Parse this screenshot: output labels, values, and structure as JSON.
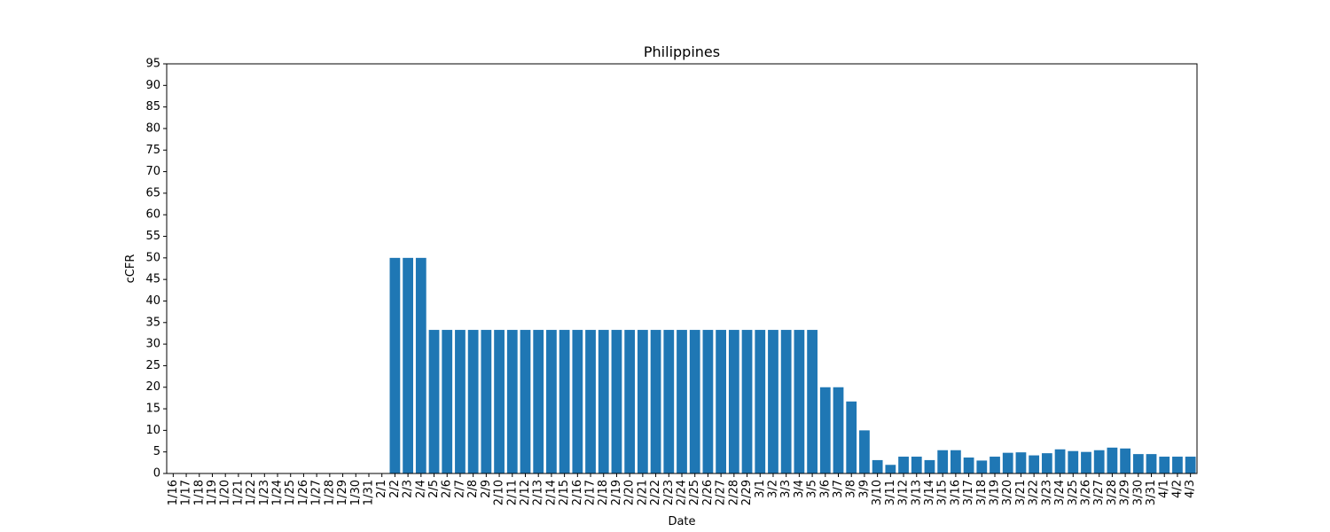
{
  "chart_data": {
    "type": "bar",
    "title": "Philippines",
    "xlabel": "Date",
    "ylabel": "cCFR",
    "ylim": [
      0,
      95
    ],
    "ytick_step": 5,
    "grid": false,
    "bar_color": "#1f77b4",
    "categories": [
      "1/16",
      "1/17",
      "1/18",
      "1/19",
      "1/20",
      "1/21",
      "1/22",
      "1/23",
      "1/24",
      "1/25",
      "1/26",
      "1/27",
      "1/28",
      "1/29",
      "1/30",
      "1/31",
      "2/1",
      "2/2",
      "2/3",
      "2/4",
      "2/5",
      "2/6",
      "2/7",
      "2/8",
      "2/9",
      "2/10",
      "2/11",
      "2/12",
      "2/13",
      "2/14",
      "2/15",
      "2/16",
      "2/17",
      "2/18",
      "2/19",
      "2/20",
      "2/21",
      "2/22",
      "2/23",
      "2/24",
      "2/25",
      "2/26",
      "2/27",
      "2/28",
      "2/29",
      "3/1",
      "3/2",
      "3/3",
      "3/4",
      "3/5",
      "3/6",
      "3/7",
      "3/8",
      "3/9",
      "3/10",
      "3/11",
      "3/12",
      "3/13",
      "3/14",
      "3/15",
      "3/16",
      "3/17",
      "3/18",
      "3/19",
      "3/20",
      "3/21",
      "3/22",
      "3/23",
      "3/24",
      "3/25",
      "3/26",
      "3/27",
      "3/28",
      "3/29",
      "3/30",
      "3/31",
      "4/1",
      "4/2",
      "4/3"
    ],
    "values": [
      0,
      0,
      0,
      0,
      0,
      0,
      0,
      0,
      0,
      0,
      0,
      0,
      0,
      0,
      0,
      0,
      0,
      50,
      50,
      50,
      33.3,
      33.3,
      33.3,
      33.3,
      33.3,
      33.3,
      33.3,
      33.3,
      33.3,
      33.3,
      33.3,
      33.3,
      33.3,
      33.3,
      33.3,
      33.3,
      33.3,
      33.3,
      33.3,
      33.3,
      33.3,
      33.3,
      33.3,
      33.3,
      33.3,
      33.3,
      33.3,
      33.3,
      33.3,
      33.3,
      20,
      20,
      16.7,
      10,
      3.1,
      2,
      3.9,
      3.9,
      3.1,
      5.4,
      5.4,
      3.7,
      3,
      3.9,
      4.8,
      4.9,
      4.2,
      4.7,
      5.6,
      5.2,
      5,
      5.4,
      6,
      5.8,
      4.5,
      4.5,
      3.9,
      3.9,
      3.9
    ]
  }
}
